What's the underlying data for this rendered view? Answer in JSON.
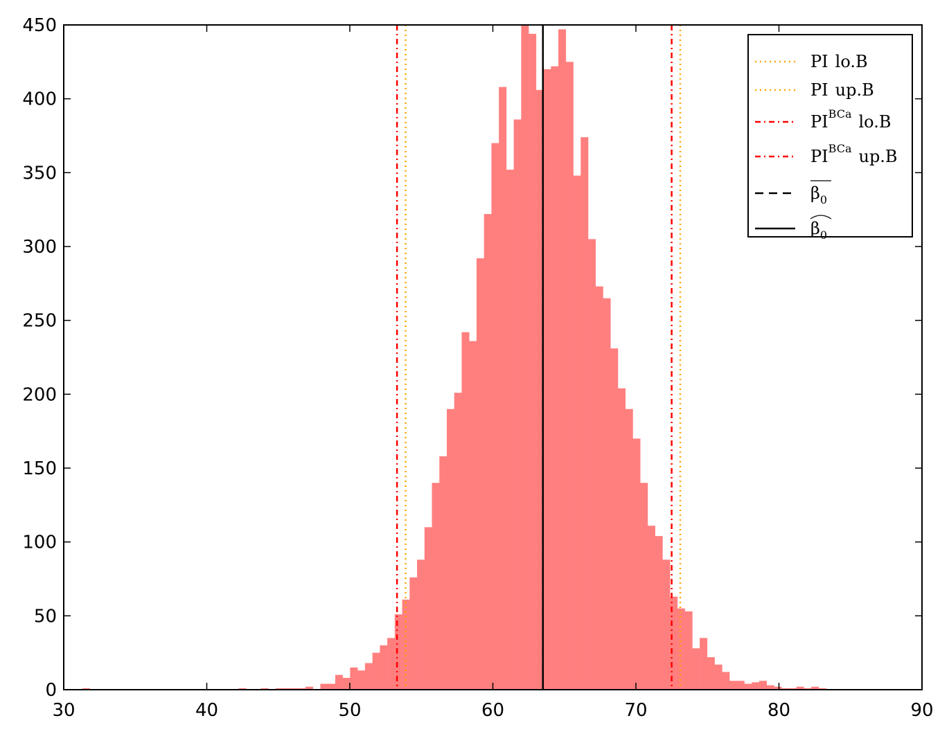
{
  "chart_data": {
    "type": "histogram",
    "bins": [
      31.3,
      31.82,
      32.34,
      32.86,
      33.38,
      33.9,
      34.42,
      34.94,
      35.46,
      35.98,
      36.5,
      37.02,
      37.54,
      38.06,
      38.58,
      39.1,
      39.62,
      40.14,
      40.66,
      41.18,
      41.7,
      42.22,
      42.74,
      43.26,
      43.78,
      44.3,
      44.82,
      45.34,
      45.86,
      46.38,
      46.9,
      47.42,
      47.94,
      48.46,
      48.98,
      49.5,
      50.02,
      50.54,
      51.06,
      51.58,
      52.1,
      52.62,
      53.14,
      53.66,
      54.18,
      54.7,
      55.22,
      55.74,
      56.26,
      56.78,
      57.3,
      57.82,
      58.34,
      58.86,
      59.38,
      59.9,
      60.42,
      60.94,
      61.46,
      61.98,
      62.5,
      63.02,
      63.54,
      64.06,
      64.58,
      65.1,
      65.62,
      66.14,
      66.66,
      67.18,
      67.7,
      68.22,
      68.74,
      69.26,
      69.78,
      70.3,
      70.82,
      71.34,
      71.86,
      72.38,
      72.9,
      73.42,
      73.94,
      74.46,
      74.98,
      75.5,
      76.02,
      76.54,
      77.06,
      77.58,
      78.1,
      78.62,
      79.14,
      79.66,
      80.18,
      80.7,
      81.22,
      81.74,
      82.26,
      82.78,
      83.3
    ],
    "values": [
      1,
      0,
      0,
      0,
      0,
      0,
      0,
      0,
      0,
      0,
      0,
      0,
      0,
      0,
      0,
      0,
      0,
      0,
      0,
      0,
      0,
      1,
      0,
      0,
      1,
      0,
      1,
      1,
      1,
      1,
      2,
      0,
      4,
      4,
      10,
      8,
      15,
      13,
      18,
      25,
      30,
      35,
      51,
      61,
      76,
      88,
      110,
      140,
      158,
      190,
      201,
      242,
      236,
      292,
      322,
      370,
      408,
      352,
      386,
      450,
      444,
      406,
      420,
      422,
      447,
      425,
      348,
      374,
      305,
      273,
      265,
      231,
      204,
      190,
      170,
      140,
      111,
      104,
      88,
      63,
      55,
      53,
      28,
      35,
      22,
      17,
      12,
      6,
      6,
      4,
      5,
      6,
      3,
      2,
      1,
      1,
      2,
      1,
      2,
      1
    ],
    "color": "#ff7f7f",
    "xlim": [
      30,
      90
    ],
    "xticks": [
      30,
      40,
      50,
      60,
      70,
      80,
      90
    ],
    "ylim": [
      0,
      450
    ],
    "yticks": [
      0,
      50,
      100,
      150,
      200,
      250,
      300,
      350,
      400,
      450
    ],
    "legend": "upper right",
    "vlines": [
      {
        "name": "PI",
        "suffix": "lo.B",
        "x": 53.9,
        "color": "#ffa500",
        "style": "dotted"
      },
      {
        "name": "PI",
        "suffix": "up.B",
        "x": 73.1,
        "color": "#ffa500",
        "style": "dotted"
      },
      {
        "name": "PI",
        "sup": "BCa",
        "suffix": "lo.B",
        "x": 53.3,
        "color": "#ff0000",
        "style": "dashdot"
      },
      {
        "name": "PI",
        "sup": "BCa",
        "suffix": "up.B",
        "x": 72.5,
        "color": "#ff0000",
        "style": "dashdot"
      },
      {
        "name": "β",
        "sub": "0",
        "accent": "bar",
        "x": 63.5,
        "color": "#000000",
        "style": "dashed"
      },
      {
        "name": "β",
        "sub": "0",
        "accent": "hat",
        "x": 63.5,
        "color": "#000000",
        "style": "solid"
      }
    ]
  }
}
